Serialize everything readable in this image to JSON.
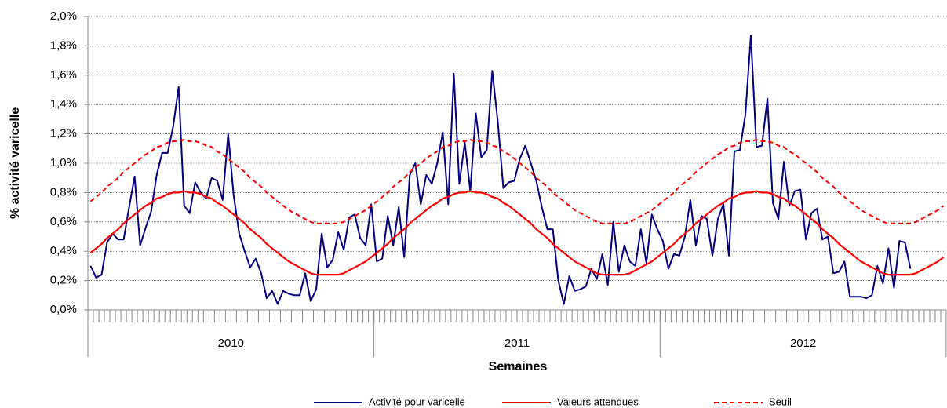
{
  "chart_data": {
    "type": "line",
    "ylabel": "% activité varicelle",
    "xlabel": "Semaines",
    "categories": [
      null,
      null,
      null,
      null,
      null,
      null,
      null,
      null,
      null,
      null,
      null,
      null,
      null,
      null,
      null,
      null,
      null,
      null,
      null,
      null,
      null,
      null,
      null,
      null,
      null,
      null,
      null,
      null,
      null,
      null,
      null,
      null,
      null,
      null,
      null,
      null,
      null,
      null,
      null,
      null,
      null,
      null,
      null,
      null,
      null,
      null,
      null,
      null,
      null,
      null,
      null,
      null,
      null,
      null,
      null,
      null,
      null,
      null,
      null,
      null,
      null,
      null,
      null,
      null,
      null,
      null,
      null,
      null,
      null,
      null,
      null,
      null,
      null,
      null,
      null,
      null,
      null,
      null,
      null,
      null,
      null,
      null,
      null,
      null,
      null,
      null,
      null,
      null,
      null,
      null,
      null,
      null,
      null,
      null,
      null,
      null,
      null,
      null,
      null,
      null,
      null,
      null,
      null,
      null,
      null,
      null,
      null,
      null,
      null,
      null,
      null,
      null,
      null,
      null,
      null,
      null,
      null,
      null,
      null,
      null,
      null,
      null,
      null,
      null,
      null,
      null,
      null,
      null,
      null,
      null,
      null,
      null,
      null,
      null,
      null,
      null,
      null,
      null,
      null,
      null,
      null,
      null,
      null,
      null,
      null,
      null,
      null,
      null,
      null,
      null,
      null,
      null,
      null,
      null,
      null,
      null
    ],
    "groups": [
      {
        "label": "2010",
        "size": 52
      },
      {
        "label": "2011",
        "size": 52
      },
      {
        "label": "2012",
        "size": 52
      }
    ],
    "ylim": [
      0,
      2.0
    ],
    "yticks": [
      {
        "value": 0,
        "label": "0,0%"
      },
      {
        "value": 0.2,
        "label": "0,2%"
      },
      {
        "value": 0.4,
        "label": "0,4%"
      },
      {
        "value": 0.6,
        "label": "0,6%"
      },
      {
        "value": 0.8,
        "label": "0,8%"
      },
      {
        "value": 1.0,
        "label": "1,0%"
      },
      {
        "value": 1.2,
        "label": "1,2%"
      },
      {
        "value": 1.4,
        "label": "1,4%"
      },
      {
        "value": 1.6,
        "label": "1,6%"
      },
      {
        "value": 1.8,
        "label": "1,8%"
      },
      {
        "value": 2.0,
        "label": "2,0%"
      }
    ],
    "grid": true,
    "legend": "bottom",
    "series": [
      {
        "name": "Activité pour varicelle",
        "color": "#000080",
        "dash": false,
        "values": [
          0.3,
          0.22,
          0.24,
          0.46,
          0.52,
          0.48,
          0.48,
          0.7,
          0.91,
          0.44,
          0.56,
          0.67,
          0.92,
          1.07,
          1.07,
          1.25,
          1.52,
          0.71,
          0.66,
          0.87,
          0.8,
          0.76,
          0.9,
          0.88,
          0.75,
          1.2,
          0.78,
          0.52,
          0.4,
          0.29,
          0.35,
          0.25,
          0.08,
          0.13,
          0.04,
          0.13,
          0.11,
          0.1,
          0.1,
          0.25,
          0.06,
          0.14,
          0.52,
          0.29,
          0.34,
          0.53,
          0.41,
          0.63,
          0.65,
          0.49,
          0.44,
          0.72,
          0.33,
          0.35,
          0.64,
          0.44,
          0.7,
          0.36,
          0.92,
          1.0,
          0.72,
          0.92,
          0.86,
          1.0,
          1.21,
          0.72,
          1.61,
          0.86,
          1.14,
          0.81,
          1.34,
          1.04,
          1.09,
          1.63,
          1.28,
          0.83,
          0.87,
          0.88,
          1.03,
          1.12,
          1.0,
          0.88,
          0.7,
          0.55,
          0.55,
          0.2,
          0.04,
          0.23,
          0.13,
          0.14,
          0.16,
          0.28,
          0.21,
          0.38,
          0.17,
          0.6,
          0.26,
          0.44,
          0.33,
          0.3,
          0.55,
          0.32,
          0.65,
          0.55,
          0.47,
          0.28,
          0.38,
          0.37,
          0.5,
          0.75,
          0.44,
          0.64,
          0.62,
          0.37,
          0.62,
          0.72,
          0.37,
          1.08,
          1.09,
          1.33,
          1.87,
          1.11,
          1.12,
          1.44,
          0.73,
          0.62,
          1.01,
          0.71,
          0.81,
          0.82,
          0.48,
          0.66,
          0.69,
          0.48,
          0.5,
          0.25,
          0.26,
          0.33,
          0.09,
          0.09,
          0.09,
          0.08,
          0.1,
          0.3,
          0.18,
          0.42,
          0.15,
          0.47,
          0.46,
          0.28,
          null,
          null,
          null,
          null,
          null,
          null
        ]
      },
      {
        "name": "Valeurs attendues",
        "color": "#ff0000",
        "dash": false,
        "values": [
          0.39,
          0.42,
          0.45,
          0.49,
          0.52,
          0.55,
          0.59,
          0.62,
          0.65,
          0.68,
          0.71,
          0.73,
          0.76,
          0.77,
          0.79,
          0.8,
          0.8,
          0.81,
          0.8,
          0.8,
          0.79,
          0.77,
          0.76,
          0.73,
          0.71,
          0.68,
          0.65,
          0.62,
          0.59,
          0.55,
          0.52,
          0.49,
          0.45,
          0.42,
          0.39,
          0.36,
          0.33,
          0.31,
          0.29,
          0.27,
          0.25,
          0.24,
          0.24,
          0.24,
          0.24,
          0.24,
          0.25,
          0.27,
          0.29,
          0.31,
          0.33,
          0.36,
          0.39,
          0.42,
          0.45,
          0.49,
          0.52,
          0.55,
          0.59,
          0.62,
          0.65,
          0.68,
          0.71,
          0.73,
          0.76,
          0.77,
          0.79,
          0.8,
          0.8,
          0.81,
          0.8,
          0.8,
          0.79,
          0.77,
          0.76,
          0.73,
          0.71,
          0.68,
          0.65,
          0.62,
          0.59,
          0.55,
          0.52,
          0.49,
          0.45,
          0.42,
          0.39,
          0.36,
          0.33,
          0.31,
          0.29,
          0.27,
          0.25,
          0.24,
          0.24,
          0.24,
          0.24,
          0.24,
          0.25,
          0.27,
          0.29,
          0.31,
          0.33,
          0.36,
          0.39,
          0.42,
          0.45,
          0.49,
          0.52,
          0.55,
          0.59,
          0.62,
          0.65,
          0.68,
          0.71,
          0.73,
          0.76,
          0.77,
          0.79,
          0.8,
          0.8,
          0.81,
          0.8,
          0.8,
          0.79,
          0.77,
          0.76,
          0.73,
          0.71,
          0.68,
          0.65,
          0.62,
          0.59,
          0.55,
          0.52,
          0.49,
          0.45,
          0.42,
          0.39,
          0.36,
          0.33,
          0.31,
          0.29,
          0.27,
          0.25,
          0.24,
          0.24,
          0.24,
          0.24,
          0.24,
          0.25,
          0.27,
          0.29,
          0.31,
          0.33,
          0.36
        ]
      },
      {
        "name": "Seuil",
        "color": "#ff0000",
        "dash": true,
        "values": [
          0.74,
          0.77,
          0.8,
          0.84,
          0.87,
          0.9,
          0.94,
          0.97,
          1.0,
          1.03,
          1.06,
          1.08,
          1.11,
          1.12,
          1.14,
          1.15,
          1.15,
          1.16,
          1.15,
          1.15,
          1.14,
          1.12,
          1.11,
          1.08,
          1.06,
          1.03,
          1.0,
          0.97,
          0.94,
          0.9,
          0.87,
          0.84,
          0.8,
          0.77,
          0.74,
          0.71,
          0.68,
          0.66,
          0.64,
          0.62,
          0.6,
          0.59,
          0.59,
          0.59,
          0.59,
          0.59,
          0.6,
          0.62,
          0.64,
          0.66,
          0.68,
          0.71,
          0.74,
          0.77,
          0.8,
          0.84,
          0.87,
          0.9,
          0.94,
          0.97,
          1.0,
          1.03,
          1.06,
          1.08,
          1.11,
          1.12,
          1.14,
          1.15,
          1.15,
          1.16,
          1.15,
          1.15,
          1.14,
          1.12,
          1.11,
          1.08,
          1.06,
          1.03,
          1.0,
          0.97,
          0.94,
          0.9,
          0.87,
          0.84,
          0.8,
          0.77,
          0.74,
          0.71,
          0.68,
          0.66,
          0.64,
          0.62,
          0.6,
          0.59,
          0.59,
          0.59,
          0.59,
          0.59,
          0.6,
          0.62,
          0.64,
          0.66,
          0.68,
          0.71,
          0.74,
          0.77,
          0.8,
          0.84,
          0.87,
          0.9,
          0.94,
          0.97,
          1.0,
          1.03,
          1.06,
          1.08,
          1.11,
          1.12,
          1.14,
          1.15,
          1.15,
          1.16,
          1.15,
          1.15,
          1.14,
          1.12,
          1.11,
          1.08,
          1.06,
          1.03,
          1.0,
          0.97,
          0.94,
          0.9,
          0.87,
          0.84,
          0.8,
          0.77,
          0.74,
          0.71,
          0.68,
          0.66,
          0.64,
          0.62,
          0.6,
          0.59,
          0.59,
          0.59,
          0.59,
          0.59,
          0.6,
          0.62,
          0.64,
          0.66,
          0.68,
          0.71
        ]
      }
    ]
  }
}
